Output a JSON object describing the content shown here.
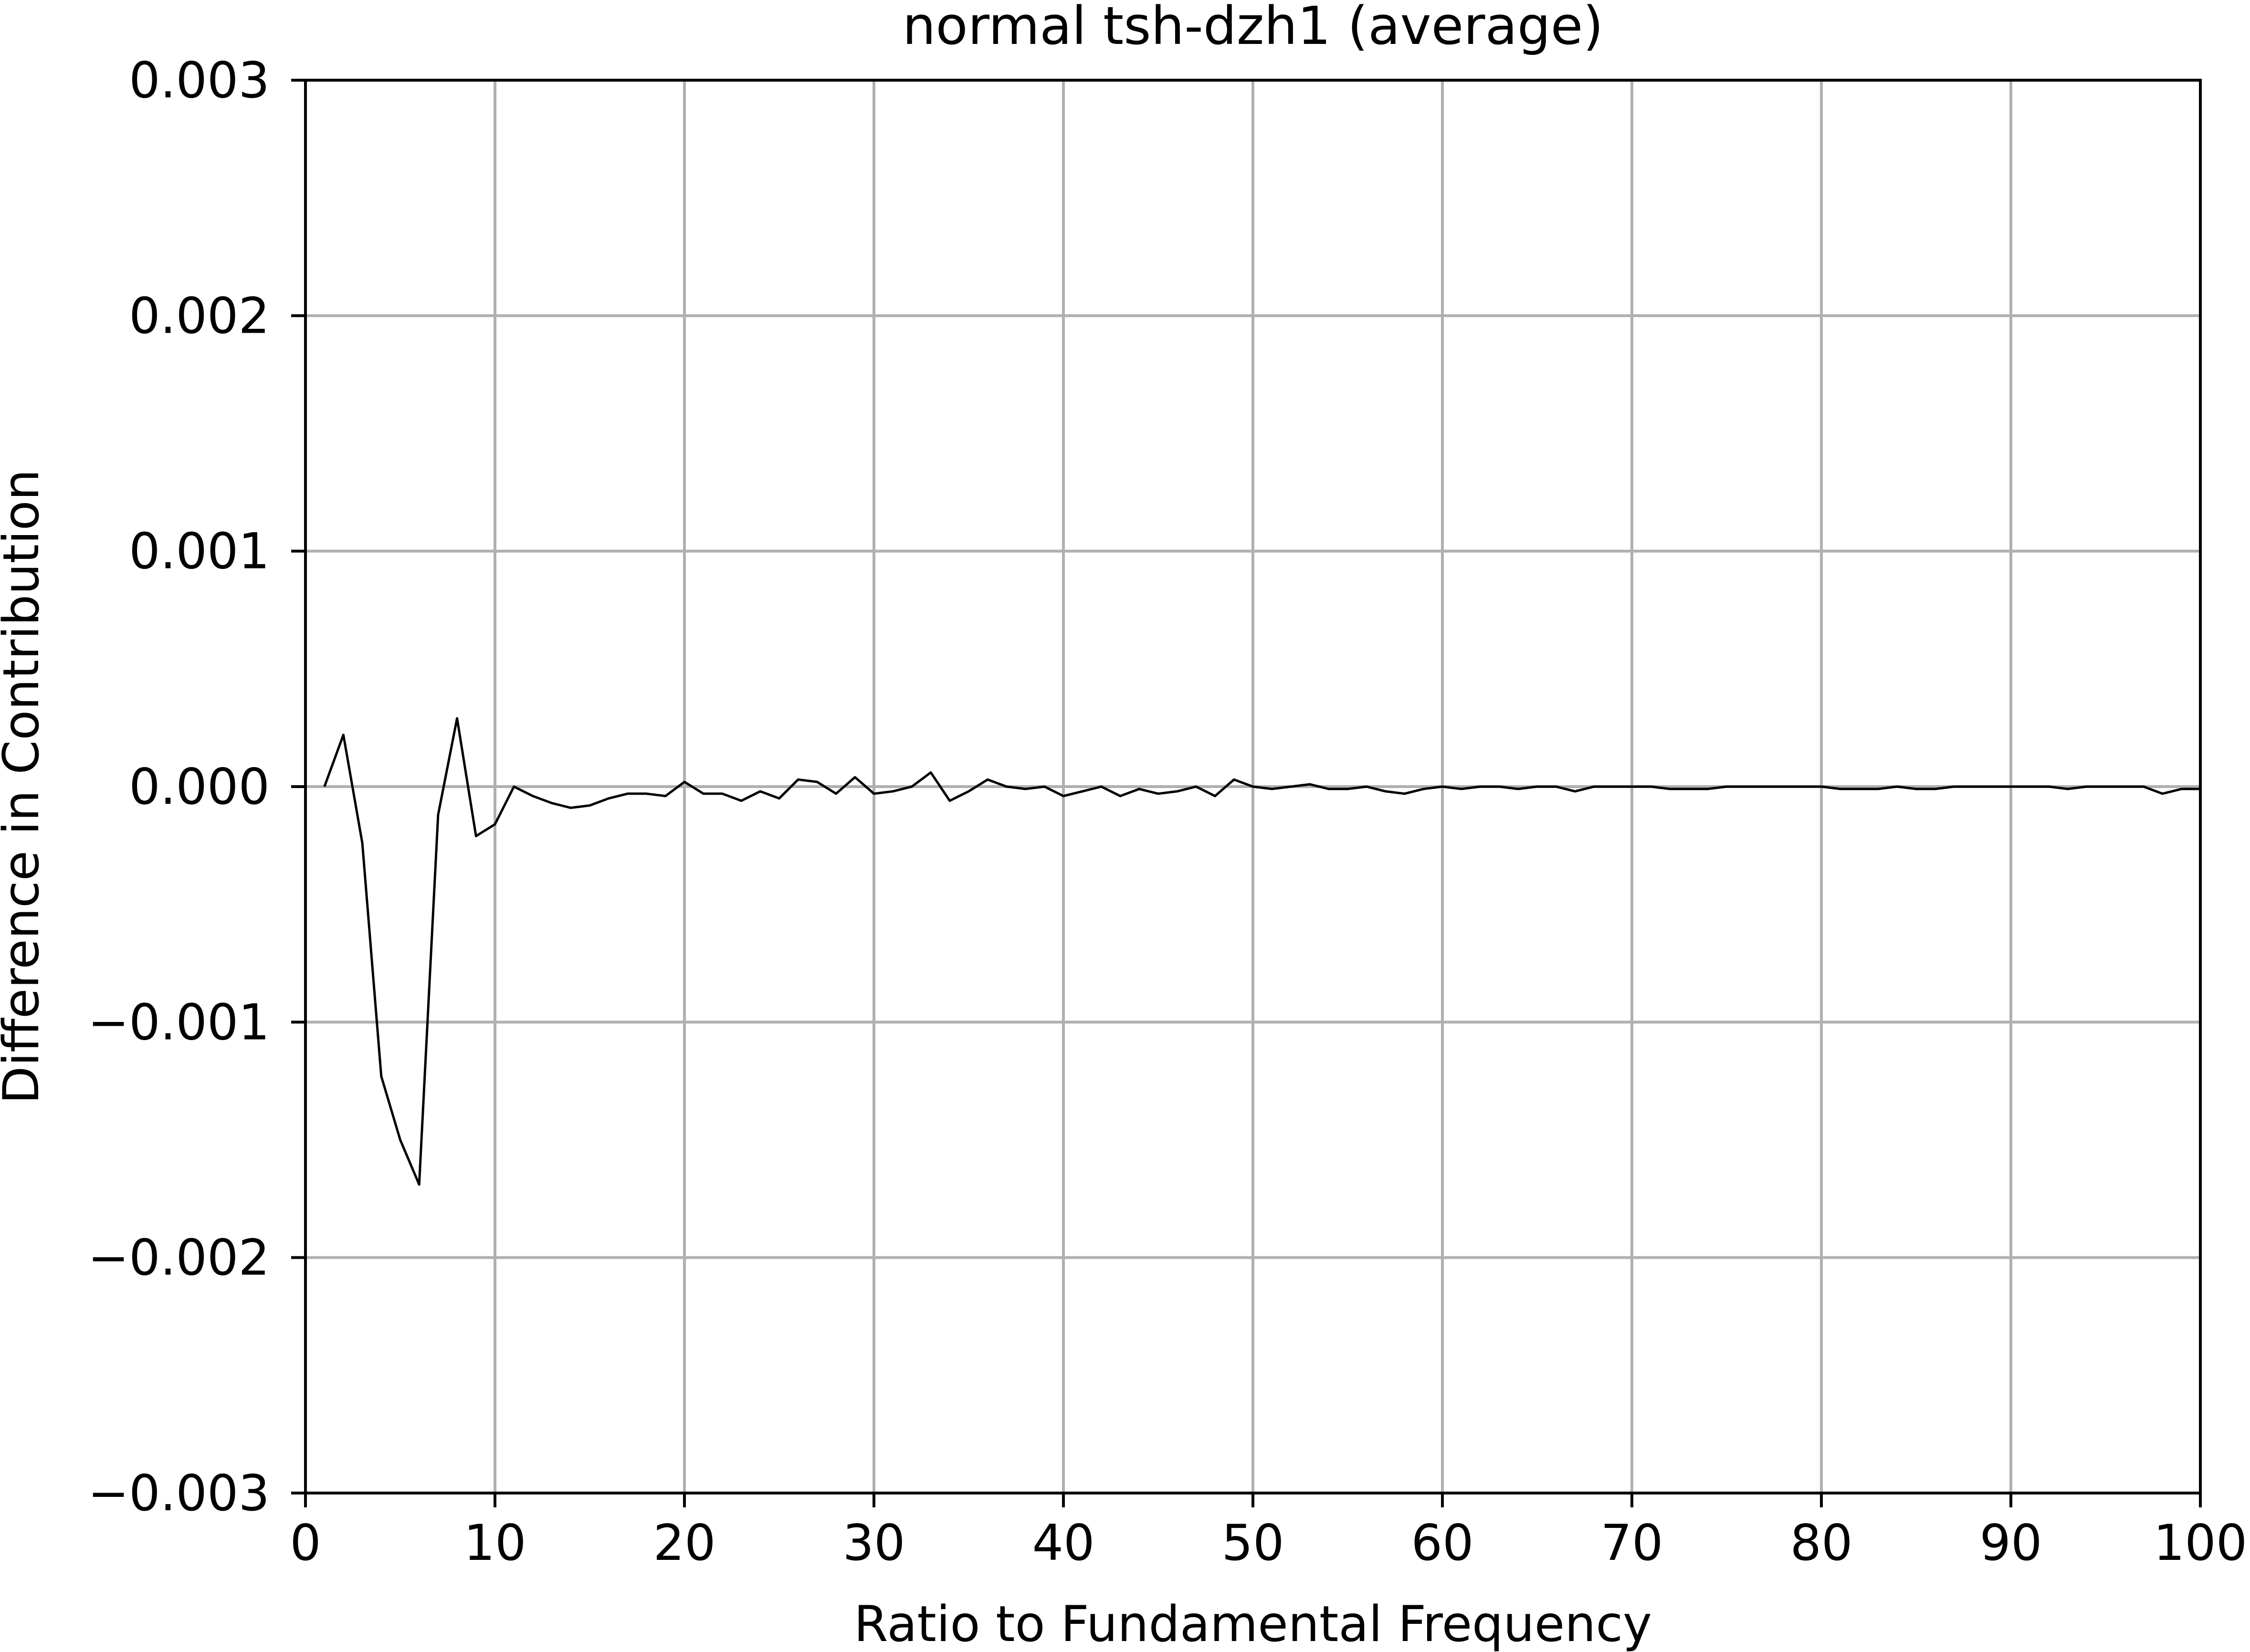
{
  "chart_data": {
    "type": "line",
    "title": "normal tsh-dzh1 (average)",
    "xlabel": "Ratio to Fundamental Frequency",
    "ylabel": "Difference in Contribution",
    "xlim": [
      0,
      100
    ],
    "ylim": [
      -0.003,
      0.003
    ],
    "grid": true,
    "x_ticks": [
      0,
      10,
      20,
      30,
      40,
      50,
      60,
      70,
      80,
      90,
      100
    ],
    "x_tick_labels": [
      "0",
      "10",
      "20",
      "30",
      "40",
      "50",
      "60",
      "70",
      "80",
      "90",
      "100"
    ],
    "y_ticks": [
      -0.003,
      -0.002,
      -0.001,
      0,
      0.001,
      0.002,
      0.003
    ],
    "y_tick_labels": [
      "−0.003",
      "−0.002",
      "−0.001",
      "0.000",
      "0.001",
      "0.002",
      "0.003"
    ],
    "colors": {
      "line": "#000000",
      "grid": "#b0b0b0",
      "axes": "#000000"
    },
    "series": [
      {
        "x": [
          1,
          2,
          3,
          4,
          5,
          6,
          7,
          8,
          9,
          10,
          11,
          12,
          13,
          14,
          15,
          16,
          17,
          18,
          19,
          20,
          21,
          22,
          23,
          24,
          25,
          26,
          27,
          28,
          29,
          30,
          31,
          32,
          33,
          34,
          35,
          36,
          37,
          38,
          39,
          40,
          41,
          42,
          43,
          44,
          45,
          46,
          47,
          48,
          49,
          50,
          51,
          52,
          53,
          54,
          55,
          56,
          57,
          58,
          59,
          60,
          61,
          62,
          63,
          64,
          65,
          66,
          67,
          68,
          69,
          70,
          71,
          72,
          73,
          74,
          75,
          76,
          77,
          78,
          79,
          80,
          81,
          82,
          83,
          84,
          85,
          86,
          87,
          88,
          89,
          90,
          91,
          92,
          93,
          94,
          95,
          96,
          97,
          98,
          99,
          100
        ],
        "values": [
          0.0,
          0.00022,
          -0.00024,
          -0.00123,
          -0.0015,
          -0.00169,
          -0.00012,
          0.00029,
          -0.00021,
          -0.00016,
          0.0,
          -4e-05,
          -7e-05,
          -9e-05,
          -8e-05,
          -5e-05,
          -3e-05,
          -3e-05,
          -4e-05,
          2e-05,
          -3e-05,
          -3e-05,
          -6e-05,
          -2e-05,
          -5e-05,
          3e-05,
          2e-05,
          -3e-05,
          4e-05,
          -3e-05,
          -2e-05,
          0.0,
          6e-05,
          -6e-05,
          -2e-05,
          3e-05,
          0.0,
          -1e-05,
          0.0,
          -4e-05,
          -2e-05,
          0.0,
          -4e-05,
          -1e-05,
          -3e-05,
          -2e-05,
          0.0,
          -4e-05,
          3e-05,
          0.0,
          -1e-05,
          0.0,
          1e-05,
          -1e-05,
          -1e-05,
          0.0,
          -2e-05,
          -3e-05,
          -1e-05,
          0.0,
          -1e-05,
          0.0,
          0.0,
          -1e-05,
          0.0,
          0.0,
          -2e-05,
          0.0,
          0.0,
          0.0,
          0.0,
          -1e-05,
          -1e-05,
          -1e-05,
          0.0,
          0.0,
          0.0,
          0.0,
          0.0,
          0.0,
          -1e-05,
          -1e-05,
          -1e-05,
          0.0,
          -1e-05,
          -1e-05,
          0.0,
          0.0,
          0.0,
          0.0,
          0.0,
          0.0,
          -1e-05,
          0.0,
          0.0,
          0.0,
          0.0,
          -3e-05,
          -1e-05,
          -1e-05
        ]
      }
    ]
  }
}
